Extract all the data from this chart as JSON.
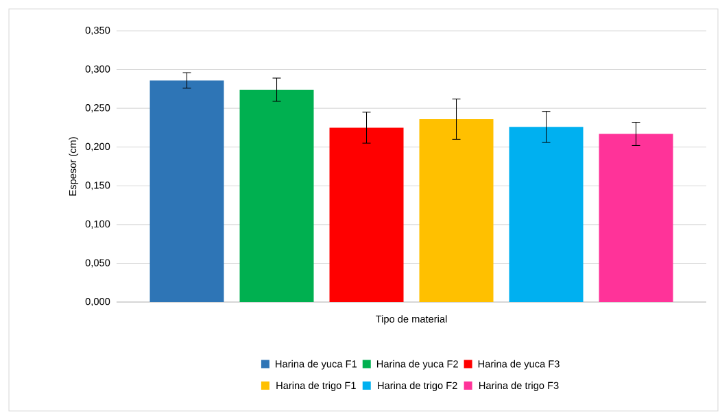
{
  "chart_data": {
    "type": "bar",
    "xlabel": "Tipo de material",
    "ylabel": "Espesor (cm)",
    "categories": [
      null
    ],
    "series": [
      {
        "name": "Harina de yuca F1",
        "color": "#2e75b6",
        "values": [
          0.286
        ],
        "errors": [
          0.01
        ]
      },
      {
        "name": "Harina de yuca F2",
        "color": "#00b050",
        "values": [
          0.274
        ],
        "errors": [
          0.015
        ]
      },
      {
        "name": "Harina de yuca F3",
        "color": "#ff0000",
        "values": [
          0.225
        ],
        "errors": [
          0.02
        ]
      },
      {
        "name": "Harina de trigo F1",
        "color": "#ffc000",
        "values": [
          0.236
        ],
        "errors": [
          0.026
        ]
      },
      {
        "name": "Harina de trigo F2",
        "color": "#00b0f0",
        "values": [
          0.226
        ],
        "errors": [
          0.02
        ]
      },
      {
        "name": "Harina de trigo F3",
        "color": "#ff3399",
        "values": [
          0.217
        ],
        "errors": [
          0.015
        ]
      }
    ],
    "ylim": [
      0,
      0.35
    ],
    "yticks": [
      {
        "value": 0,
        "label": "0,000"
      },
      {
        "value": 0.05,
        "label": "0,050"
      },
      {
        "value": 0.1,
        "label": "0,100"
      },
      {
        "value": 0.15,
        "label": "0,150"
      },
      {
        "value": 0.2,
        "label": "0,200"
      },
      {
        "value": 0.25,
        "label": "0,250"
      },
      {
        "value": 0.3,
        "label": "0,300"
      },
      {
        "value": 0.35,
        "label": "0,350"
      }
    ],
    "grid": "y",
    "legend": "bottom"
  }
}
